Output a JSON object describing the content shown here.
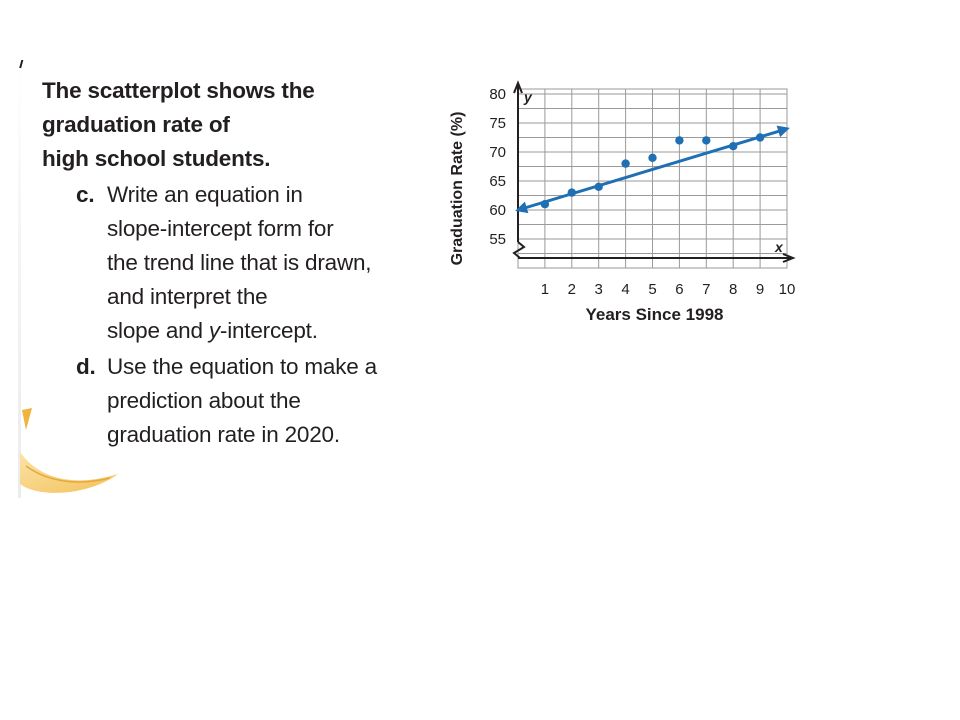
{
  "stray_mark": "'",
  "question": {
    "intro_lines": [
      "The scatterplot shows the",
      "graduation rate of",
      "high school students."
    ],
    "items": [
      {
        "letter": "c.",
        "lines": [
          "Write an equation in",
          "slope-intercept form for",
          "the trend line that is drawn,",
          "and interpret the",
          "slope and y-intercept."
        ]
      },
      {
        "letter": "d.",
        "lines": [
          "Use the equation to make a",
          "prediction about the",
          "graduation rate in 2020."
        ]
      }
    ]
  },
  "colors": {
    "point": "#1f6fb4",
    "trend_line": "#1f6fb4",
    "grid": "#9a9a9a",
    "text": "#231f20",
    "swoosh": "#f0b43c"
  },
  "chart_data": {
    "type": "scatter",
    "title": "",
    "xlabel": "Years Since 1998",
    "ylabel": "Graduation Rate (%)",
    "x_axis_letter": "x",
    "y_axis_letter": "y",
    "xlim": [
      0,
      10
    ],
    "ylim": [
      50,
      80
    ],
    "x_ticks": [
      "1",
      "2",
      "3",
      "4",
      "5",
      "6",
      "7",
      "8",
      "9",
      "10"
    ],
    "y_ticks": [
      "55",
      "60",
      "65",
      "70",
      "75",
      "80"
    ],
    "axis_break": true,
    "grid": true,
    "points": [
      {
        "x": 1,
        "y": 61
      },
      {
        "x": 2,
        "y": 63
      },
      {
        "x": 3,
        "y": 64
      },
      {
        "x": 4,
        "y": 68
      },
      {
        "x": 5,
        "y": 69
      },
      {
        "x": 6,
        "y": 72
      },
      {
        "x": 7,
        "y": 72
      },
      {
        "x": 8,
        "y": 71
      },
      {
        "x": 9,
        "y": 72.5
      }
    ],
    "trend_line": {
      "from": {
        "x": 0,
        "y": 60
      },
      "to": {
        "x": 10,
        "y": 74
      },
      "arrows": "both"
    }
  }
}
